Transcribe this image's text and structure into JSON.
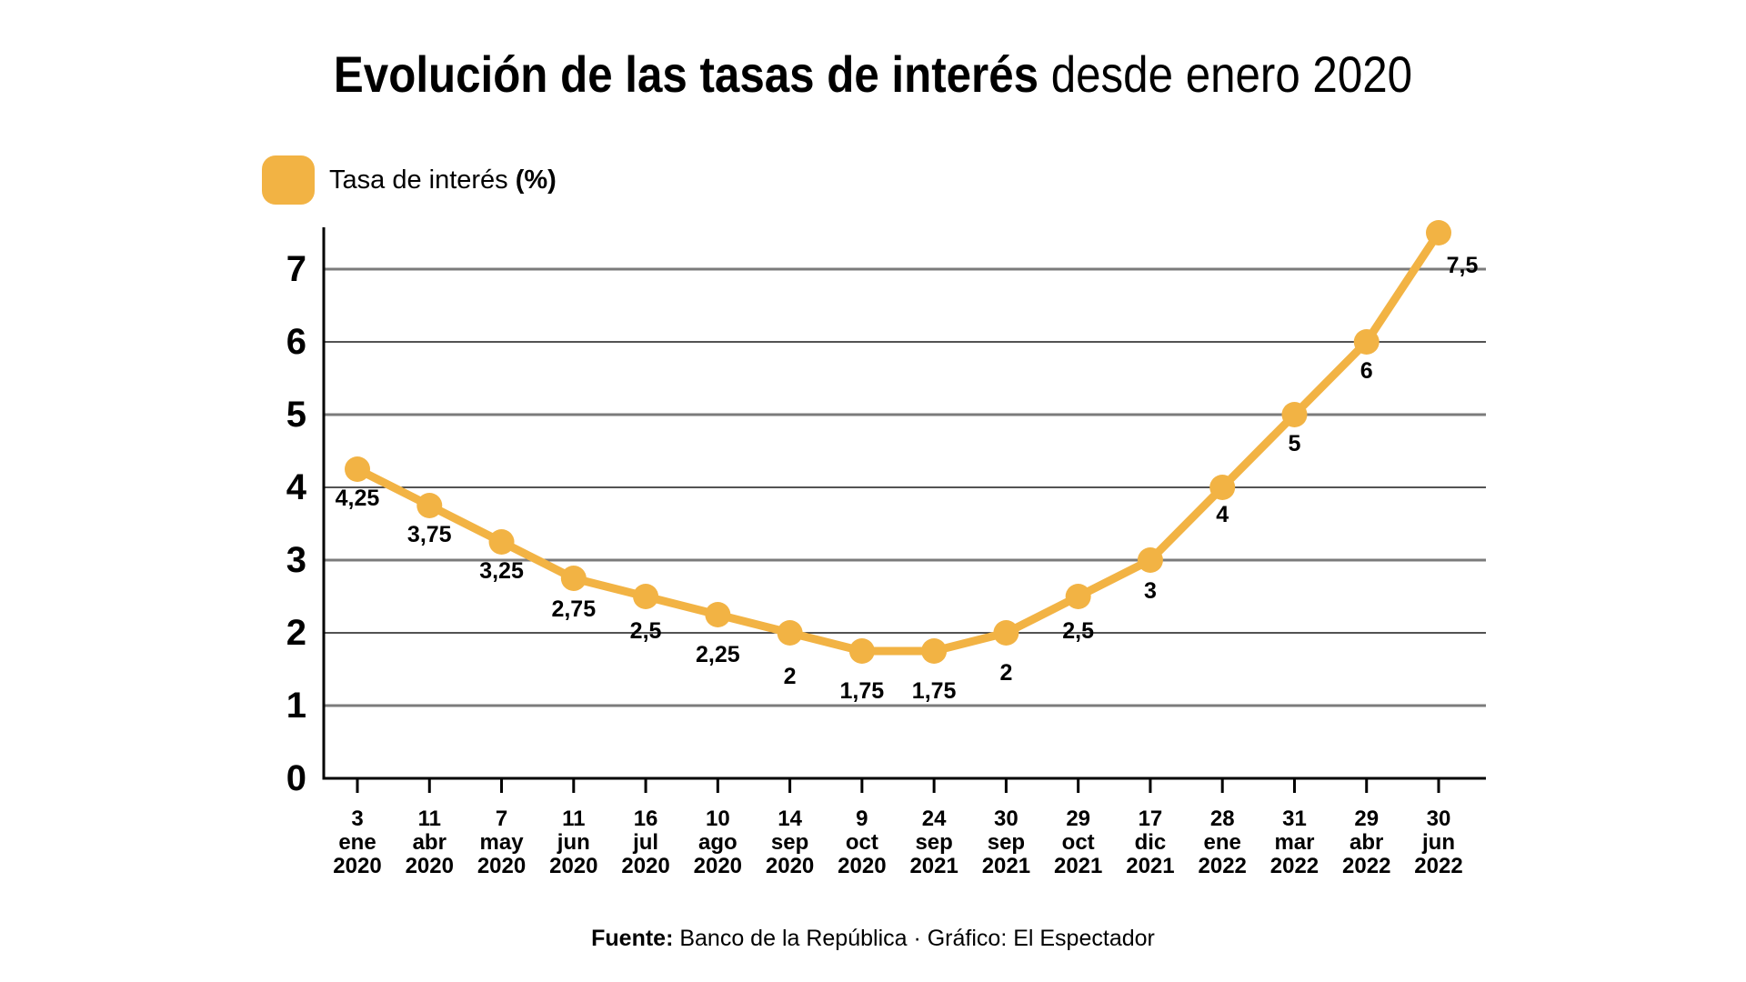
{
  "title": {
    "bold": "Evolución de las tasas de interés",
    "regular": " desde enero 2020"
  },
  "legend": {
    "label": "Tasa de interés ",
    "label_bold": "(%)",
    "swatch_color": "#F2B344"
  },
  "footer": {
    "source_label": "Fuente:",
    "source_rest": " Banco de la República · Gráfico: El Espectador"
  },
  "chart_data": {
    "type": "line",
    "title": "Evolución de las tasas de interés desde enero 2020",
    "series_name": "Tasa de interés (%)",
    "categories": [
      {
        "day": "3",
        "month": "ene",
        "year": "2020"
      },
      {
        "day": "11",
        "month": "abr",
        "year": "2020"
      },
      {
        "day": "7",
        "month": "may",
        "year": "2020"
      },
      {
        "day": "11",
        "month": "jun",
        "year": "2020"
      },
      {
        "day": "16",
        "month": "jul",
        "year": "2020"
      },
      {
        "day": "10",
        "month": "ago",
        "year": "2020"
      },
      {
        "day": "14",
        "month": "sep",
        "year": "2020"
      },
      {
        "day": "9",
        "month": "oct",
        "year": "2020"
      },
      {
        "day": "24",
        "month": "sep",
        "year": "2021"
      },
      {
        "day": "30",
        "month": "sep",
        "year": "2021"
      },
      {
        "day": "29",
        "month": "oct",
        "year": "2021"
      },
      {
        "day": "17",
        "month": "dic",
        "year": "2021"
      },
      {
        "day": "28",
        "month": "ene",
        "year": "2022"
      },
      {
        "day": "31",
        "month": "mar",
        "year": "2022"
      },
      {
        "day": "29",
        "month": "abr",
        "year": "2022"
      },
      {
        "day": "30",
        "month": "jun",
        "year": "2022"
      }
    ],
    "values": [
      4.25,
      3.75,
      3.25,
      2.75,
      2.5,
      2.25,
      2,
      1.75,
      1.75,
      2,
      2.5,
      3,
      4,
      5,
      6,
      7.5
    ],
    "value_labels": [
      "4,25",
      "3,75",
      "3,25",
      "2,75",
      "2,5",
      "2,25",
      "2",
      "1,75",
      "1,75",
      "2",
      "2,5",
      "3",
      "4",
      "5",
      "6",
      "7,5"
    ],
    "yticks": [
      0,
      1,
      2,
      3,
      4,
      5,
      6,
      7
    ],
    "ylim": [
      0,
      7.55
    ],
    "grid": true,
    "legend_position": "top-left",
    "line_color": "#F2B344",
    "marker_color": "#F2B344",
    "grid_color_major": "#7b7b7b",
    "grid_color_minor": "#1a1a1a",
    "axis_color": "#000000",
    "label_color": "#000000"
  }
}
